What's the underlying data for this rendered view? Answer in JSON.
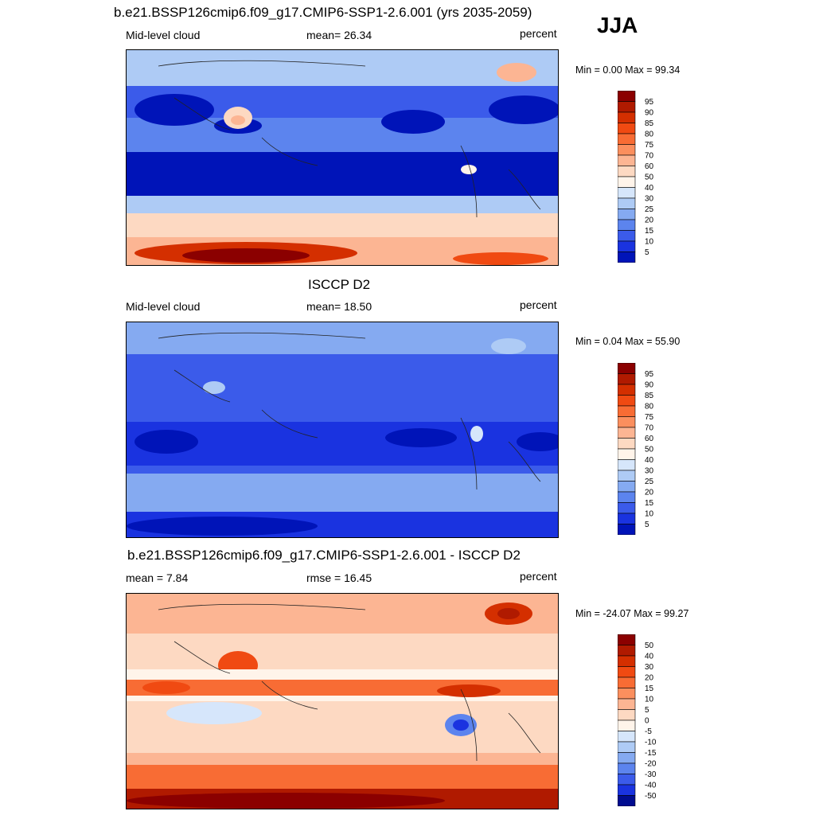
{
  "season": "JJA",
  "panels": [
    {
      "title": "b.e21.BSSP126cmip6.f09_g17.CMIP6-SSP1-2.6.001 (yrs 2035-2059)",
      "left_label": "Mid-level cloud",
      "center_label": "mean=  26.34",
      "right_label": "percent",
      "minmax": "Min =    0.00 Max =  99.34",
      "colorbar_labels": [
        "95",
        "90",
        "85",
        "80",
        "75",
        "70",
        "60",
        "50",
        "40",
        "30",
        "25",
        "20",
        "15",
        "10",
        "5"
      ],
      "colorbar_colors": [
        "#8b0000",
        "#b01a00",
        "#d42f00",
        "#f04a12",
        "#f86c34",
        "#fb8f5e",
        "#fcb593",
        "#fdd9c2",
        "#fff4ea",
        "#d6e6fb",
        "#aecbf5",
        "#85aaf1",
        "#5c84ee",
        "#3b5bea",
        "#1a33e0",
        "#0014b8"
      ],
      "mean_value": 26.34,
      "min_value": 0.0,
      "max_value": 99.34
    },
    {
      "title": "ISCCP D2",
      "left_label": "Mid-level cloud",
      "center_label": "mean=  18.50",
      "right_label": "percent",
      "minmax": "Min =    0.04 Max =  55.90",
      "colorbar_labels": [
        "95",
        "90",
        "85",
        "80",
        "75",
        "70",
        "60",
        "50",
        "40",
        "30",
        "25",
        "20",
        "15",
        "10",
        "5"
      ],
      "colorbar_colors": [
        "#8b0000",
        "#b01a00",
        "#d42f00",
        "#f04a12",
        "#f86c34",
        "#fb8f5e",
        "#fcb593",
        "#fdd9c2",
        "#fff4ea",
        "#d6e6fb",
        "#aecbf5",
        "#85aaf1",
        "#5c84ee",
        "#3b5bea",
        "#1a33e0",
        "#0014b8"
      ],
      "mean_value": 18.5,
      "min_value": 0.04,
      "max_value": 55.9
    },
    {
      "title": "b.e21.BSSP126cmip6.f09_g17.CMIP6-SSP1-2.6.001 - ISCCP D2",
      "left_label": "mean =   7.84",
      "center_label": "rmse =  16.45",
      "right_label": "percent",
      "minmax": "Min = -24.07 Max =  99.27",
      "colorbar_labels": [
        "50",
        "40",
        "30",
        "20",
        "15",
        "10",
        "5",
        "0",
        "-5",
        "-10",
        "-15",
        "-20",
        "-30",
        "-40",
        "-50"
      ],
      "colorbar_colors": [
        "#8b0000",
        "#b01a00",
        "#d42f00",
        "#f04a12",
        "#f86c34",
        "#fb8f5e",
        "#fcb593",
        "#fdd9c2",
        "#fff4ea",
        "#d6e6fb",
        "#aecbf5",
        "#85aaf1",
        "#5c84ee",
        "#3b5bea",
        "#1a33e0",
        "#000c90"
      ],
      "mean_value": 7.84,
      "rmse_value": 16.45,
      "min_value": -24.07,
      "max_value": 99.27
    }
  ],
  "chart_data": [
    {
      "type": "heatmap",
      "title": "b.e21.BSSP126cmip6.f09_g17.CMIP6-SSP1-2.6.001 (yrs 2035-2059)",
      "variable": "Mid-level cloud",
      "units": "percent",
      "mean": 26.34,
      "min": 0.0,
      "max": 99.34,
      "contour_levels": [
        5,
        10,
        15,
        20,
        25,
        30,
        40,
        50,
        60,
        70,
        75,
        80,
        85,
        90,
        95
      ]
    },
    {
      "type": "heatmap",
      "title": "ISCCP D2",
      "variable": "Mid-level cloud",
      "units": "percent",
      "mean": 18.5,
      "min": 0.04,
      "max": 55.9,
      "contour_levels": [
        5,
        10,
        15,
        20,
        25,
        30,
        40,
        50,
        60,
        70,
        75,
        80,
        85,
        90,
        95
      ]
    },
    {
      "type": "heatmap",
      "title": "b.e21.BSSP126cmip6.f09_g17.CMIP6-SSP1-2.6.001 - ISCCP D2",
      "units": "percent",
      "mean": 7.84,
      "rmse": 16.45,
      "min": -24.07,
      "max": 99.27,
      "contour_levels": [
        -50,
        -40,
        -30,
        -20,
        -15,
        -10,
        -5,
        0,
        5,
        10,
        15,
        20,
        30,
        40,
        50
      ]
    }
  ]
}
